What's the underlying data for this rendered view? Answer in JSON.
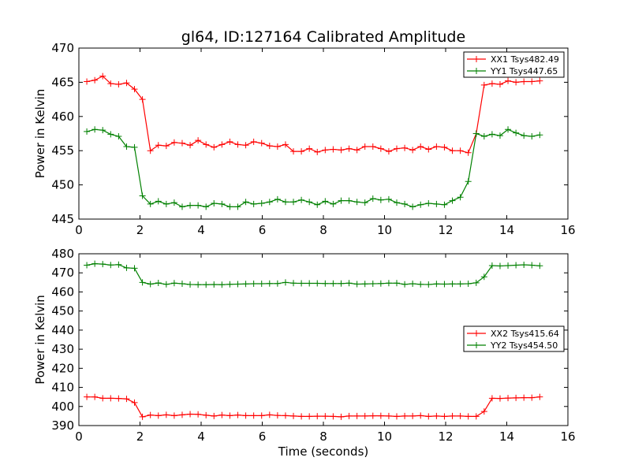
{
  "figure": {
    "title": "gl64, ID:127164 Calibrated Amplitude"
  },
  "chart_data": [
    {
      "type": "line",
      "title": "gl64, ID:127164 Calibrated Amplitude",
      "xlabel": "",
      "ylabel": "Power in Kelvin",
      "xlim": [
        0,
        16
      ],
      "ylim": [
        445,
        470
      ],
      "xticks": [
        "0",
        "2",
        "4",
        "6",
        "8",
        "10",
        "12",
        "14",
        "16"
      ],
      "yticks": [
        "445",
        "450",
        "455",
        "460",
        "465",
        "470"
      ],
      "grid": false,
      "legend_position": "top-right",
      "x": [
        0.26,
        0.52,
        0.78,
        1.04,
        1.3,
        1.56,
        1.82,
        2.08,
        2.34,
        2.6,
        2.86,
        3.12,
        3.38,
        3.64,
        3.9,
        4.16,
        4.42,
        4.68,
        4.94,
        5.2,
        5.46,
        5.72,
        5.98,
        6.24,
        6.5,
        6.76,
        7.02,
        7.28,
        7.54,
        7.8,
        8.06,
        8.32,
        8.58,
        8.84,
        9.1,
        9.36,
        9.62,
        9.88,
        10.14,
        10.4,
        10.66,
        10.92,
        11.18,
        11.44,
        11.7,
        11.96,
        12.22,
        12.48,
        12.74,
        13.0,
        13.26,
        13.52,
        13.78,
        14.04,
        14.3,
        14.56,
        14.82,
        15.08
      ],
      "series": [
        {
          "name": "XX1 Tsys482.49",
          "color": "#ff0000",
          "values": [
            465.1,
            465.3,
            465.9,
            464.8,
            464.7,
            464.9,
            464.0,
            462.5,
            455.0,
            455.8,
            455.7,
            456.2,
            456.1,
            455.8,
            456.5,
            455.9,
            455.5,
            455.9,
            456.3,
            455.9,
            455.8,
            456.3,
            456.1,
            455.7,
            455.6,
            455.9,
            454.9,
            454.9,
            455.3,
            454.8,
            455.1,
            455.2,
            455.1,
            455.3,
            455.1,
            455.6,
            455.6,
            455.3,
            454.9,
            455.3,
            455.4,
            455.1,
            455.6,
            455.2,
            455.6,
            455.5,
            455.0,
            455.0,
            454.7,
            457.5,
            464.6,
            464.8,
            464.7,
            465.2,
            465.0,
            465.1,
            465.1,
            465.2
          ]
        },
        {
          "name": "YY1 Tsys447.65",
          "color": "#008000",
          "values": [
            457.8,
            458.1,
            458.0,
            457.4,
            457.1,
            455.6,
            455.5,
            448.4,
            447.2,
            447.6,
            447.2,
            447.4,
            446.8,
            447.0,
            447.0,
            446.8,
            447.3,
            447.2,
            446.8,
            446.8,
            447.5,
            447.2,
            447.3,
            447.5,
            447.9,
            447.5,
            447.5,
            447.8,
            447.5,
            447.1,
            447.6,
            447.2,
            447.7,
            447.7,
            447.5,
            447.4,
            448.0,
            447.8,
            447.9,
            447.4,
            447.2,
            446.8,
            447.1,
            447.3,
            447.2,
            447.1,
            447.7,
            448.2,
            450.5,
            457.5,
            457.1,
            457.4,
            457.2,
            458.1,
            457.6,
            457.2,
            457.1,
            457.3
          ]
        }
      ]
    },
    {
      "type": "line",
      "title": "",
      "xlabel": "Time (seconds)",
      "ylabel": "Power in Kelvin",
      "xlim": [
        0,
        16
      ],
      "ylim": [
        390,
        480
      ],
      "xticks": [
        "0",
        "2",
        "4",
        "6",
        "8",
        "10",
        "12",
        "14",
        "16"
      ],
      "yticks": [
        "390",
        "400",
        "410",
        "420",
        "430",
        "440",
        "450",
        "460",
        "470",
        "480"
      ],
      "grid": false,
      "legend_position": "center-right",
      "x": [
        0.26,
        0.52,
        0.78,
        1.04,
        1.3,
        1.56,
        1.82,
        2.08,
        2.34,
        2.6,
        2.86,
        3.12,
        3.38,
        3.64,
        3.9,
        4.16,
        4.42,
        4.68,
        4.94,
        5.2,
        5.46,
        5.72,
        5.98,
        6.24,
        6.5,
        6.76,
        7.02,
        7.28,
        7.54,
        7.8,
        8.06,
        8.32,
        8.58,
        8.84,
        9.1,
        9.36,
        9.62,
        9.88,
        10.14,
        10.4,
        10.66,
        10.92,
        11.18,
        11.44,
        11.7,
        11.96,
        12.22,
        12.48,
        12.74,
        13.0,
        13.26,
        13.52,
        13.78,
        14.04,
        14.3,
        14.56,
        14.82,
        15.08
      ],
      "series": [
        {
          "name": "XX2 Tsys415.64",
          "color": "#ff0000",
          "values": [
            405.0,
            405.0,
            404.3,
            404.3,
            404.2,
            404.0,
            402.0,
            394.6,
            395.5,
            395.2,
            395.6,
            395.2,
            395.6,
            396.0,
            395.9,
            395.4,
            395.0,
            395.5,
            395.2,
            395.5,
            395.2,
            395.2,
            395.2,
            395.6,
            395.3,
            395.2,
            395.0,
            394.8,
            394.8,
            394.9,
            394.9,
            394.8,
            394.6,
            395.0,
            395.0,
            395.0,
            395.1,
            395.1,
            395.0,
            394.8,
            395.0,
            395.0,
            395.2,
            394.8,
            395.0,
            394.8,
            395.0,
            395.0,
            394.8,
            394.8,
            397.4,
            404.3,
            404.2,
            404.4,
            404.5,
            404.6,
            404.6,
            405.0
          ]
        },
        {
          "name": "YY2 Tsys454.50",
          "color": "#008000",
          "values": [
            474.0,
            474.8,
            474.6,
            474.1,
            474.3,
            472.6,
            472.4,
            465.0,
            464.1,
            464.7,
            464.0,
            464.6,
            464.3,
            463.9,
            463.8,
            463.8,
            463.9,
            463.8,
            464.0,
            464.1,
            464.2,
            464.3,
            464.3,
            464.4,
            464.4,
            465.0,
            464.6,
            464.5,
            464.5,
            464.5,
            464.4,
            464.4,
            464.4,
            464.6,
            464.1,
            464.2,
            464.3,
            464.4,
            464.6,
            464.6,
            464.0,
            464.3,
            464.0,
            463.9,
            464.2,
            464.1,
            464.2,
            464.2,
            464.3,
            464.8,
            467.9,
            473.8,
            473.6,
            473.8,
            474.0,
            474.2,
            474.0,
            473.7
          ]
        }
      ]
    }
  ]
}
